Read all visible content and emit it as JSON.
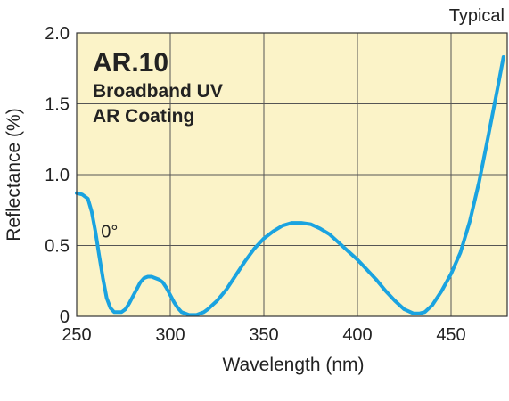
{
  "chart_data": {
    "type": "line",
    "corner_label": "Typical",
    "title": "AR.10",
    "subtitle_lines": [
      "Broadband UV",
      "AR Coating"
    ],
    "xlabel": "Wavelength (nm)",
    "ylabel": "Reflectance (%)",
    "xlim": [
      250,
      480
    ],
    "ylim": [
      0,
      2.0
    ],
    "x_ticks": [
      250,
      300,
      350,
      400,
      450
    ],
    "x_tick_labels": [
      "250",
      "300",
      "350",
      "400",
      "450"
    ],
    "y_ticks": [
      0,
      0.5,
      1.0,
      1.5,
      2.0
    ],
    "y_tick_labels": [
      "0",
      "0.5",
      "1.0",
      "1.5",
      "2.0"
    ],
    "grid": true,
    "annotations": [
      {
        "text": "0°",
        "x": 263,
        "y": 0.6
      }
    ],
    "colors": {
      "background": "#fbf3c8",
      "line": "#1aa3e0",
      "grid": "#555555"
    },
    "series": [
      {
        "x": [
          250,
          253,
          256,
          258,
          260,
          262,
          264,
          266,
          268,
          270,
          272,
          274,
          276,
          278,
          280,
          282,
          284,
          286,
          288,
          290,
          292,
          294,
          296,
          298,
          300,
          302,
          304,
          306,
          308,
          310,
          312,
          314,
          316,
          318,
          320,
          325,
          330,
          335,
          340,
          345,
          350,
          355,
          360,
          365,
          370,
          375,
          380,
          385,
          390,
          395,
          400,
          405,
          410,
          415,
          420,
          425,
          430,
          433,
          436,
          440,
          445,
          450,
          455,
          460,
          465,
          470,
          475,
          478
        ],
        "y": [
          0.87,
          0.86,
          0.83,
          0.74,
          0.6,
          0.43,
          0.27,
          0.13,
          0.06,
          0.03,
          0.03,
          0.03,
          0.05,
          0.09,
          0.14,
          0.19,
          0.24,
          0.27,
          0.28,
          0.28,
          0.27,
          0.26,
          0.24,
          0.2,
          0.15,
          0.1,
          0.06,
          0.03,
          0.02,
          0.01,
          0.01,
          0.01,
          0.02,
          0.03,
          0.05,
          0.11,
          0.19,
          0.29,
          0.39,
          0.48,
          0.55,
          0.6,
          0.64,
          0.66,
          0.66,
          0.65,
          0.62,
          0.58,
          0.52,
          0.46,
          0.4,
          0.33,
          0.26,
          0.18,
          0.11,
          0.05,
          0.02,
          0.02,
          0.03,
          0.08,
          0.18,
          0.3,
          0.45,
          0.67,
          0.95,
          1.28,
          1.62,
          1.83
        ]
      }
    ]
  }
}
